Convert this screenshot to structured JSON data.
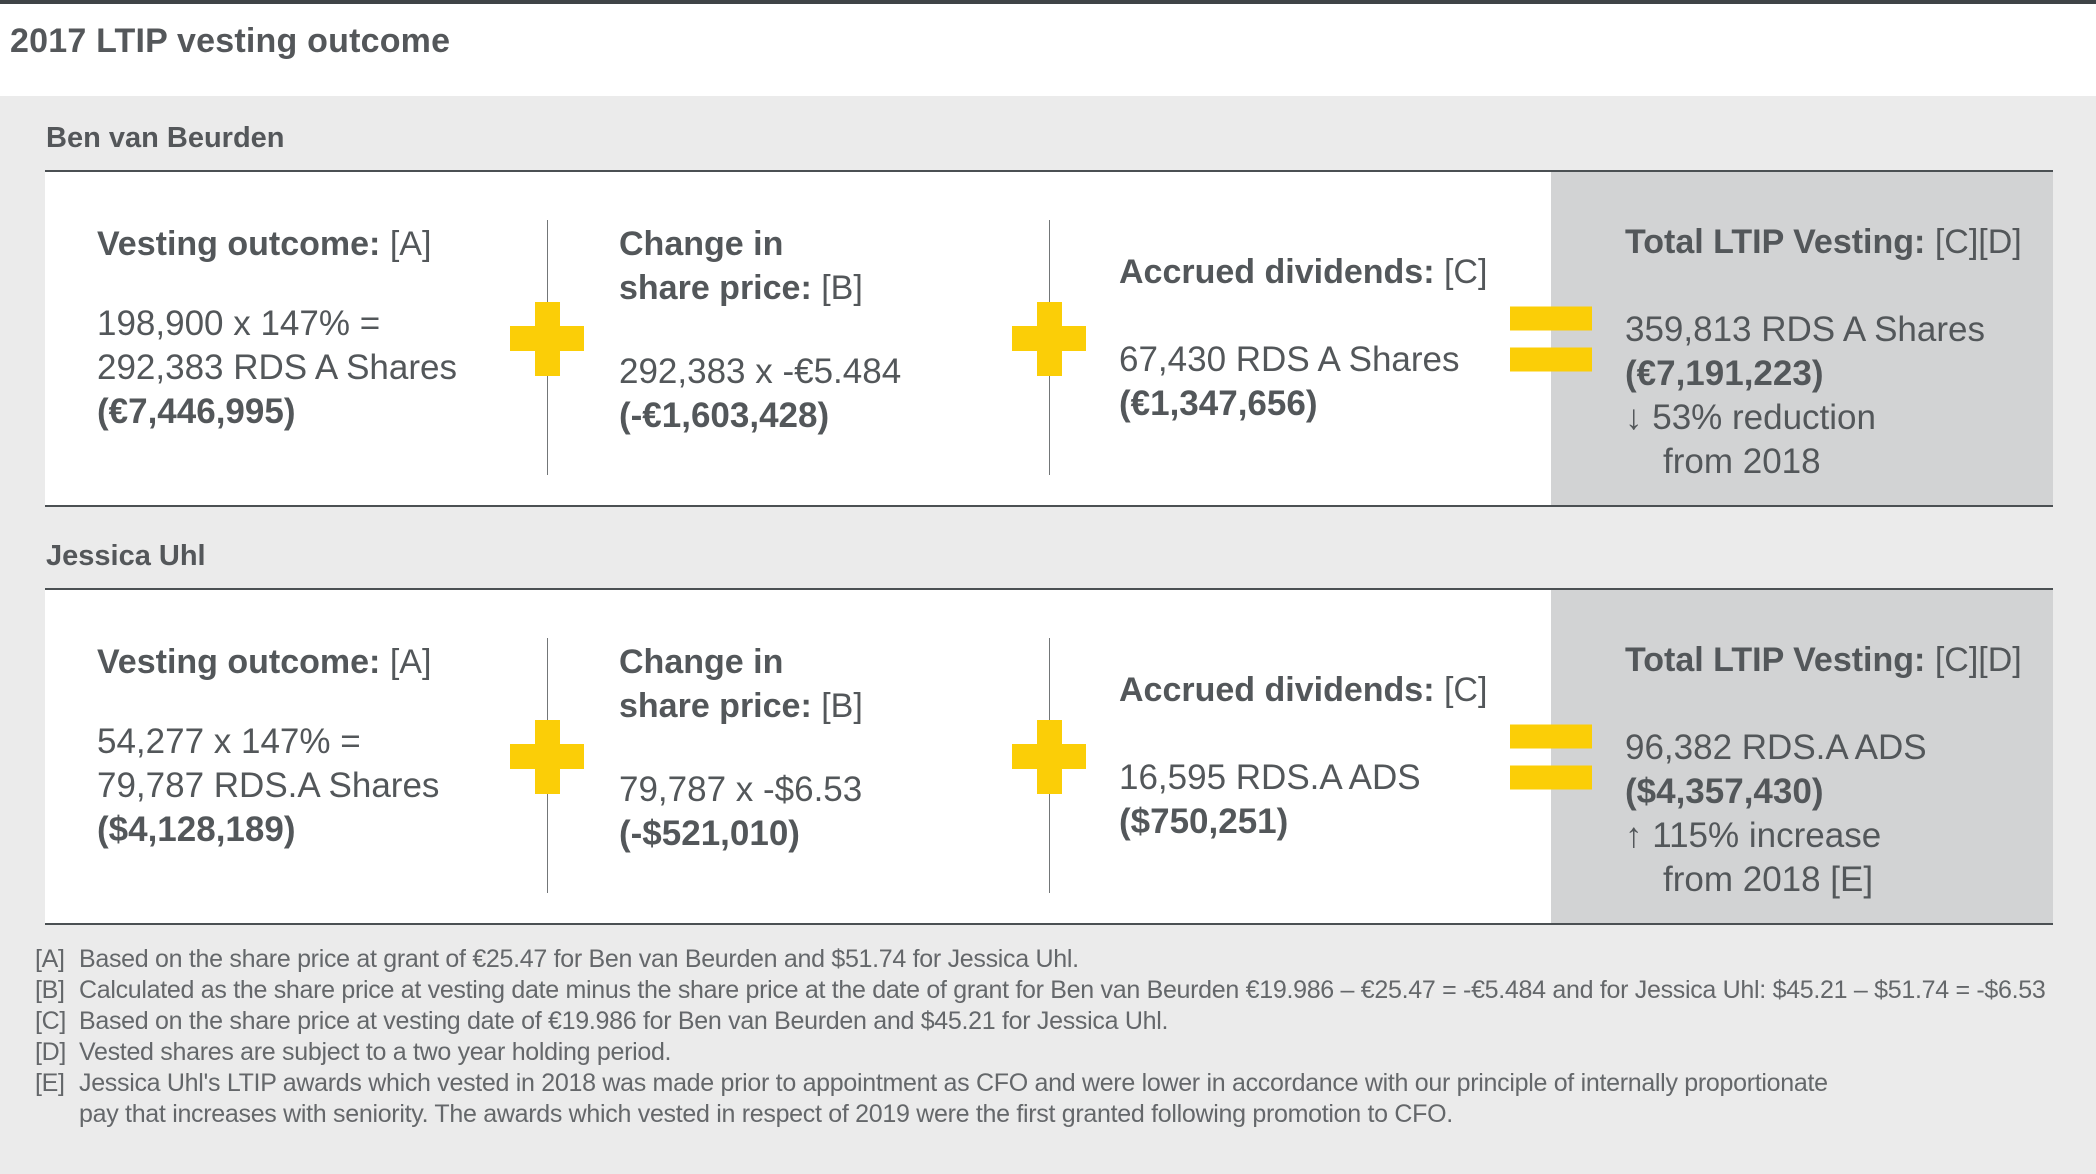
{
  "page": {
    "title": "2017 LTIP vesting outcome"
  },
  "colors": {
    "accent_yellow": "#fbce07",
    "panel_gray": "#d2d3d4",
    "background_gray": "#ebebeb",
    "text_dark": "#53575a"
  },
  "operators": {
    "plus": "+",
    "equals": "="
  },
  "people": [
    {
      "section_label": "Ben van Beurden",
      "vesting_outcome": {
        "title": "Vesting outcome:",
        "ref": "[A]",
        "calc_line1": "198,900 x 147% =",
        "calc_line2": "292,383 RDS A Shares",
        "amount": "(€7,446,995)"
      },
      "change_in_share_price": {
        "title_line1": "Change in",
        "title_line2": "share price:",
        "ref": "[B]",
        "calc_line1": "292,383 x -€5.484",
        "amount": "(-€1,603,428)"
      },
      "accrued_dividends": {
        "title": "Accrued dividends:",
        "ref": "[C]",
        "calc_line1": "67,430 RDS A Shares",
        "amount": "(€1,347,656)"
      },
      "total_ltip_vesting": {
        "title": "Total LTIP Vesting:",
        "ref": "[C][D]",
        "shares_line": "359,813 RDS A Shares",
        "amount": "(€7,191,223)",
        "delta_line1": "↓ 53% reduction",
        "delta_line2": "from 2018"
      }
    },
    {
      "section_label": "Jessica Uhl",
      "vesting_outcome": {
        "title": "Vesting outcome:",
        "ref": "[A]",
        "calc_line1": "54,277 x 147% =",
        "calc_line2": "79,787 RDS.A Shares",
        "amount": "($4,128,189)"
      },
      "change_in_share_price": {
        "title_line1": "Change in",
        "title_line2": "share price:",
        "ref": "[B]",
        "calc_line1": "79,787 x -$6.53",
        "amount": "(-$521,010)"
      },
      "accrued_dividends": {
        "title": "Accrued dividends:",
        "ref": "[C]",
        "calc_line1": "16,595 RDS.A ADS",
        "amount": "($750,251)"
      },
      "total_ltip_vesting": {
        "title": "Total LTIP Vesting:",
        "ref": "[C][D]",
        "shares_line": "96,382 RDS.A ADS",
        "amount": "($4,357,430)",
        "delta_line1": "↑ 115% increase",
        "delta_line2": "from 2018 [E]"
      }
    }
  ],
  "footnotes": [
    {
      "marker": "[A]",
      "lines": [
        "Based on the share price at grant of €25.47 for Ben van Beurden and $51.74 for Jessica Uhl."
      ]
    },
    {
      "marker": "[B]",
      "lines": [
        "Calculated as the share price at vesting date minus the share price at the date of grant for Ben van Beurden €19.986 – €25.47 = -€5.484 and for Jessica Uhl: $45.21 – $51.74 = -$6.53"
      ]
    },
    {
      "marker": "[C]",
      "lines": [
        "Based on the share price at vesting date of €19.986 for Ben van Beurden and $45.21 for Jessica Uhl."
      ]
    },
    {
      "marker": "[D]",
      "lines": [
        "Vested shares are subject to a two year holding period."
      ]
    },
    {
      "marker": "[E]",
      "lines": [
        "Jessica Uhl's LTIP awards which vested in 2018 was made prior to appointment as CFO and were lower in accordance with our principle of internally proportionate",
        "pay that increases with seniority. The awards which vested in respect of 2019 were the first granted following promotion to CFO."
      ]
    }
  ]
}
